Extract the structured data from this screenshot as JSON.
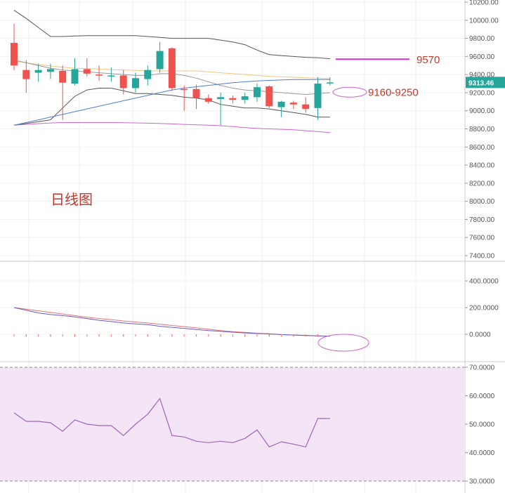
{
  "chart_data": {
    "type": "candlestick",
    "title": "日线图",
    "annotations": {
      "resistance_label": "9570",
      "support_label": "9160-9250"
    },
    "current_price_badge": "9313.46",
    "colors": {
      "up": "#26a69a",
      "down": "#ef5350",
      "bb_band": "#555555",
      "ma_long": "#cc66cc",
      "ma_orange": "#f2c57c",
      "ma_gray": "#999999",
      "ma_blue": "#4c7fd6",
      "resistance": "#cc33cc",
      "label_red": "#c0392b",
      "rsi_fill": "#f3e5f5",
      "rsi_line": "#a064c0",
      "macd_fast": "#6a5acd",
      "macd_slow": "#e57373",
      "circle": "#cc66cc",
      "badge_bg": "#26a69a"
    },
    "price_axis": {
      "ylim": [
        7400,
        10200
      ],
      "ticks": [
        "10200.00",
        "10000.00",
        "9800.00",
        "9600.00",
        "9400.00",
        "9200.00",
        "9000.00",
        "8800.00",
        "8600.00",
        "8400.00",
        "8200.00",
        "8000.00",
        "7800.00",
        "7600.00",
        "7400.00"
      ]
    },
    "macd_axis": {
      "ylim": [
        -100,
        400
      ],
      "ticks": [
        "400.0000",
        "200.0000",
        "0.0000"
      ]
    },
    "rsi_axis": {
      "ylim": [
        30,
        70
      ],
      "ticks": [
        "70.0000",
        "60.0000",
        "50.0000",
        "40.0000",
        "30.0000"
      ],
      "band": [
        30,
        70
      ]
    },
    "candles": [
      {
        "o": 9750,
        "h": 9960,
        "l": 9450,
        "c": 9500
      },
      {
        "o": 9450,
        "h": 9560,
        "l": 9200,
        "c": 9350
      },
      {
        "o": 9420,
        "h": 9520,
        "l": 9320,
        "c": 9450
      },
      {
        "o": 9430,
        "h": 9520,
        "l": 9350,
        "c": 9460
      },
      {
        "o": 9440,
        "h": 9500,
        "l": 8900,
        "c": 9310
      },
      {
        "o": 9300,
        "h": 9580,
        "l": 9280,
        "c": 9460
      },
      {
        "o": 9460,
        "h": 9580,
        "l": 9380,
        "c": 9410
      },
      {
        "o": 9400,
        "h": 9500,
        "l": 9330,
        "c": 9390
      },
      {
        "o": 9390,
        "h": 9480,
        "l": 9320,
        "c": 9390
      },
      {
        "o": 9390,
        "h": 9450,
        "l": 9180,
        "c": 9250
      },
      {
        "o": 9250,
        "h": 9420,
        "l": 9200,
        "c": 9360
      },
      {
        "o": 9350,
        "h": 9500,
        "l": 9280,
        "c": 9450
      },
      {
        "o": 9460,
        "h": 9760,
        "l": 9420,
        "c": 9660
      },
      {
        "o": 9690,
        "h": 9700,
        "l": 9220,
        "c": 9250
      },
      {
        "o": 9240,
        "h": 9280,
        "l": 9000,
        "c": 9230
      },
      {
        "o": 9240,
        "h": 9290,
        "l": 9020,
        "c": 9140
      },
      {
        "o": 9140,
        "h": 9180,
        "l": 9080,
        "c": 9100
      },
      {
        "o": 9130,
        "h": 9200,
        "l": 8840,
        "c": 9150
      },
      {
        "o": 9140,
        "h": 9170,
        "l": 9080,
        "c": 9120
      },
      {
        "o": 9120,
        "h": 9200,
        "l": 9080,
        "c": 9160
      },
      {
        "o": 9150,
        "h": 9300,
        "l": 9100,
        "c": 9260
      },
      {
        "o": 9270,
        "h": 9280,
        "l": 9030,
        "c": 9050
      },
      {
        "o": 9040,
        "h": 9110,
        "l": 8930,
        "c": 9100
      },
      {
        "o": 9090,
        "h": 9110,
        "l": 9020,
        "c": 9070
      },
      {
        "o": 9070,
        "h": 9150,
        "l": 8980,
        "c": 9020
      },
      {
        "o": 9030,
        "h": 9370,
        "l": 8900,
        "c": 9300
      },
      {
        "o": 9310,
        "h": 9370,
        "l": 9280,
        "c": 9313
      }
    ],
    "bb_upper": [
      10110,
      10020,
      9920,
      9820,
      9820,
      9825,
      9830,
      9830,
      9830,
      9830,
      9830,
      9820,
      9810,
      9800,
      9800,
      9800,
      9800,
      9780,
      9760,
      9730,
      9670,
      9620,
      9610,
      9600,
      9590,
      9585,
      9575
    ],
    "bb_lower": [
      8840,
      8860,
      8880,
      8900,
      9030,
      9160,
      9230,
      9250,
      9250,
      9220,
      9190,
      9190,
      9180,
      9170,
      9150,
      9140,
      9120,
      9070,
      9050,
      9030,
      9030,
      9020,
      9000,
      8980,
      8960,
      8930,
      8930
    ],
    "ma_long": [
      8840,
      8850,
      8858,
      8865,
      8870,
      8870,
      8870,
      8870,
      8870,
      8868,
      8866,
      8863,
      8860,
      8855,
      8850,
      8845,
      8840,
      8835,
      8825,
      8815,
      8805,
      8800,
      8795,
      8790,
      8780,
      8770,
      8760
    ],
    "ma_orange": [
      9550,
      9530,
      9510,
      9495,
      9480,
      9470,
      9465,
      9460,
      9455,
      9450,
      9445,
      9440,
      9440,
      9440,
      9440,
      9440,
      9430,
      9420,
      9410,
      9400,
      9390,
      9380,
      9375,
      9370,
      9365,
      9360,
      9355
    ],
    "ma_gray": [
      9560,
      9530,
      9500,
      9470,
      9450,
      9440,
      9430,
      9420,
      9410,
      9400,
      9390,
      9390,
      9410,
      9410,
      9390,
      9360,
      9320,
      9280,
      9250,
      9230,
      9220,
      9210,
      9200,
      9190,
      9180,
      9190,
      9200
    ],
    "ma_blue": [
      8840,
      8870,
      8900,
      8930,
      8960,
      8990,
      9020,
      9050,
      9080,
      9110,
      9140,
      9170,
      9200,
      9230,
      9250,
      9265,
      9280,
      9295,
      9310,
      9320,
      9330,
      9335,
      9340,
      9345,
      9345,
      9345,
      9345
    ],
    "macd_slow": [
      200,
      188,
      176,
      164,
      152,
      140,
      128,
      118,
      110,
      100,
      92,
      84,
      76,
      66,
      58,
      48,
      38,
      28,
      20,
      14,
      8,
      4,
      -2,
      -6,
      -10,
      -12,
      -14
    ],
    "macd_fast": [
      200,
      180,
      160,
      148,
      140,
      130,
      118,
      105,
      95,
      85,
      78,
      72,
      60,
      52,
      44,
      36,
      28,
      22,
      16,
      10,
      6,
      2,
      -2,
      -6,
      -8,
      -12,
      -14
    ],
    "macd_ticks": [
      -18,
      -18,
      -18,
      -18,
      -18,
      -18,
      -18,
      -18,
      -18,
      -18,
      -18,
      -18,
      -18,
      -18,
      -18,
      -18,
      -18,
      -18,
      -18,
      -18,
      -18,
      -18,
      -18,
      -18,
      -18,
      -18
    ],
    "rsi": [
      54,
      51,
      51,
      50.5,
      47.5,
      51.5,
      50,
      49.5,
      49.5,
      46,
      50,
      53.5,
      59,
      46,
      45.5,
      44,
      43.5,
      44,
      43.5,
      45,
      48,
      42,
      43.8,
      43,
      42,
      52,
      52
    ]
  }
}
